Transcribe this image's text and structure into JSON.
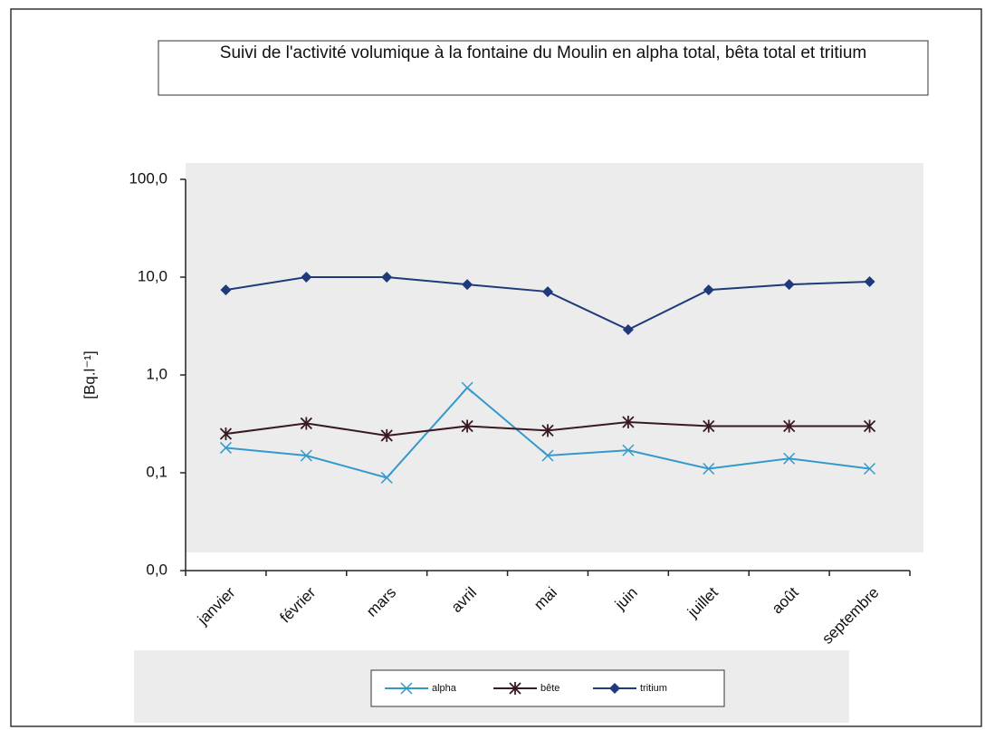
{
  "chart_data": {
    "type": "line",
    "title": "Suivi de l'activité volumique à la fontaine du Moulin en alpha total, bêta total et tritium",
    "y_label": "[Bq.l⁻¹]",
    "categories": [
      "janvier",
      "février",
      "mars",
      "avril",
      "mai",
      "juin",
      "juillet",
      "août",
      "septembre"
    ],
    "series": [
      {
        "name": "alpha",
        "color": "#3399cc",
        "marker": "x",
        "values": [
          0.18,
          0.15,
          0.089,
          0.74,
          0.15,
          0.17,
          0.11,
          0.14,
          0.11
        ]
      },
      {
        "name": "bête",
        "color": "#3a1a22",
        "marker": "star",
        "values": [
          0.25,
          0.32,
          0.24,
          0.3,
          0.27,
          0.33,
          0.3,
          0.3,
          0.3
        ]
      },
      {
        "name": "tritium",
        "color": "#1f3a7a",
        "marker": "diamond",
        "values": [
          7.4,
          10,
          10,
          8.4,
          7.1,
          2.9,
          7.4,
          8.4,
          9.0
        ]
      }
    ],
    "ylim": [
      0.01,
      100
    ],
    "log_y": true,
    "yticks": [
      {
        "value": 0.01,
        "label": "0,0"
      },
      {
        "value": 0.1,
        "label": "0,1"
      },
      {
        "value": 1,
        "label": "1,0"
      },
      {
        "value": 10,
        "label": "10,0"
      },
      {
        "value": 100,
        "label": "100,0"
      }
    ],
    "legend": "bottom"
  }
}
